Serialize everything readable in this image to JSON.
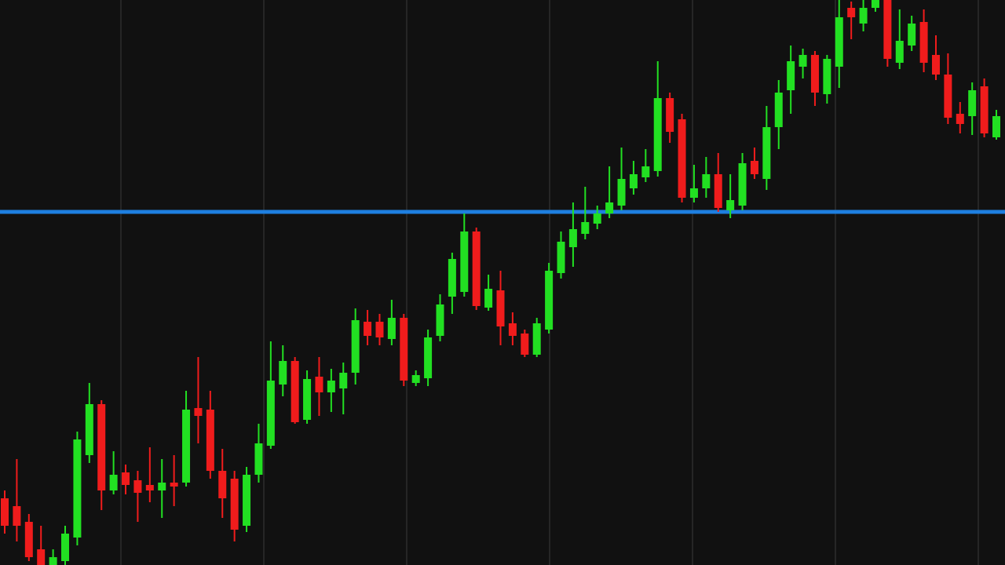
{
  "chart_data": {
    "type": "candlestick",
    "ylim": [
      0,
      720
    ],
    "up_color": "#22e022",
    "down_color": "#f01c1c",
    "hline": 450,
    "hline_color": "#1e7fe0",
    "grid": true,
    "open": [
      85,
      75,
      55,
      20,
      0,
      5,
      35,
      140,
      205,
      95,
      118,
      108,
      102,
      95,
      105,
      105,
      200,
      198,
      120,
      110,
      50,
      115,
      152,
      230,
      260,
      185,
      240,
      220,
      225,
      245,
      310,
      310,
      288,
      315,
      232,
      238,
      292,
      342,
      348,
      425,
      328,
      350,
      308,
      295,
      268,
      300,
      372,
      405,
      422,
      435,
      448,
      458,
      480,
      494,
      502,
      595,
      568,
      468,
      480,
      498,
      452,
      458,
      515,
      492,
      558,
      605,
      635,
      650,
      600,
      635,
      710,
      690,
      710,
      720,
      640,
      662,
      692,
      650,
      625,
      575,
      572,
      610,
      545
    ],
    "high": [
      95,
      135,
      65,
      50,
      20,
      50,
      170,
      232,
      210,
      145,
      128,
      120,
      150,
      135,
      140,
      222,
      265,
      222,
      148,
      120,
      125,
      180,
      285,
      280,
      265,
      248,
      265,
      250,
      258,
      327,
      325,
      320,
      338,
      320,
      248,
      300,
      345,
      398,
      448,
      430,
      370,
      375,
      322,
      300,
      315,
      385,
      425,
      462,
      482,
      458,
      508,
      532,
      515,
      530,
      642,
      602,
      575,
      510,
      520,
      525,
      498,
      525,
      532,
      585,
      618,
      662,
      658,
      655,
      650,
      720,
      718,
      720,
      720,
      720,
      708,
      700,
      708,
      675,
      652,
      590,
      615,
      620,
      580
    ],
    "low": [
      40,
      30,
      5,
      0,
      0,
      0,
      25,
      130,
      70,
      90,
      90,
      55,
      80,
      60,
      75,
      100,
      155,
      110,
      60,
      30,
      42,
      105,
      148,
      215,
      180,
      180,
      190,
      195,
      192,
      230,
      280,
      280,
      280,
      228,
      228,
      228,
      285,
      320,
      342,
      325,
      324,
      280,
      280,
      265,
      265,
      295,
      365,
      380,
      415,
      428,
      442,
      452,
      472,
      488,
      495,
      538,
      462,
      462,
      468,
      450,
      442,
      452,
      492,
      478,
      530,
      575,
      620,
      585,
      588,
      608,
      670,
      680,
      705,
      635,
      632,
      655,
      628,
      618,
      562,
      550,
      548,
      545,
      542
    ],
    "close": [
      50,
      50,
      10,
      0,
      10,
      40,
      160,
      205,
      95,
      115,
      102,
      92,
      95,
      105,
      100,
      198,
      190,
      120,
      85,
      45,
      115,
      155,
      235,
      260,
      182,
      237,
      220,
      235,
      245,
      312,
      292,
      290,
      315,
      235,
      242,
      290,
      332,
      390,
      425,
      330,
      352,
      304,
      292,
      268,
      308,
      375,
      412,
      428,
      437,
      448,
      462,
      492,
      498,
      508,
      595,
      552,
      468,
      480,
      498,
      455,
      465,
      512,
      498,
      558,
      602,
      642,
      650,
      602,
      645,
      698,
      698,
      710,
      720,
      645,
      668,
      690,
      640,
      625,
      570,
      562,
      605,
      550,
      572
    ]
  }
}
